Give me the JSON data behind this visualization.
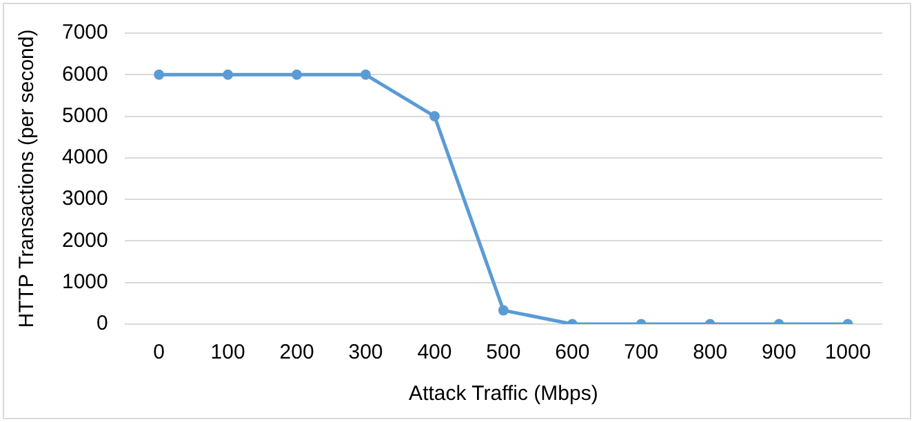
{
  "chart_data": {
    "type": "line",
    "xlabel": "Attack Traffic (Mbps)",
    "ylabel": "HTTP Transactions (per second)",
    "categories": [
      "0",
      "100",
      "200",
      "300",
      "400",
      "500",
      "600",
      "700",
      "800",
      "900",
      "1000"
    ],
    "series": [
      {
        "color": "#5b9bd5",
        "values": [
          6000,
          6000,
          6000,
          6000,
          5000,
          330,
          0,
          0,
          0,
          0,
          0
        ]
      }
    ],
    "ylim": [
      0,
      7000
    ],
    "yticks": [
      0,
      1000,
      2000,
      3000,
      4000,
      5000,
      6000,
      7000
    ],
    "grid": "y",
    "legend": false,
    "marker": "circle",
    "line_style": "solid"
  }
}
